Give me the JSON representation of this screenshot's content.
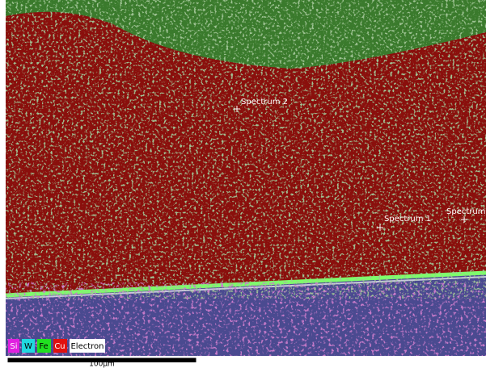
{
  "markers": [
    {
      "label": "Spectrum 2"
    },
    {
      "label": "Spectrum 1"
    },
    {
      "label": "Spectrum"
    }
  ],
  "legend": [
    "Si",
    "W",
    "Fe",
    "Cu",
    "Electron"
  ],
  "scale_bar": {
    "label": "100µm"
  }
}
